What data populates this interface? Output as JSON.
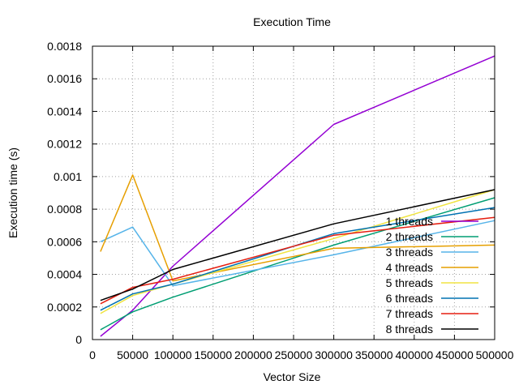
{
  "chart_data": {
    "type": "line",
    "title": "Execution Time",
    "xlabel": "Vector Size",
    "ylabel": "Execution time (s)",
    "xlim": [
      0,
      500000
    ],
    "ylim": [
      0,
      0.0018
    ],
    "x_ticks": [
      0,
      50000,
      100000,
      150000,
      200000,
      250000,
      300000,
      350000,
      400000,
      450000,
      500000
    ],
    "x_tick_labels": [
      "0",
      "50000",
      "100000",
      "150000",
      "200000",
      "250000",
      "300000",
      "350000",
      "400000",
      "450000",
      "500000"
    ],
    "y_ticks": [
      0,
      0.0002,
      0.0004,
      0.0006,
      0.0008,
      0.001,
      0.0012,
      0.0014,
      0.0016,
      0.0018
    ],
    "y_tick_labels": [
      "0",
      "0.0002",
      "0.0004",
      "0.0006",
      "0.0008",
      "0.001",
      "0.0012",
      "0.0014",
      "0.0016",
      "0.0018"
    ],
    "grid": true,
    "legend_position": "bottom-right",
    "x": [
      10000,
      50000,
      100000,
      300000,
      500000
    ],
    "series": [
      {
        "name": "1 threads",
        "color": "#9400d3",
        "values": [
          2e-05,
          0.00018,
          0.00045,
          0.00132,
          0.00174
        ]
      },
      {
        "name": "2 threads",
        "color": "#009e73",
        "values": [
          6e-05,
          0.00017,
          0.00026,
          0.00058,
          0.00087
        ]
      },
      {
        "name": "3 threads",
        "color": "#56b4e9",
        "values": [
          0.0006,
          0.00069,
          0.00033,
          0.00052,
          0.00073
        ]
      },
      {
        "name": "4 threads",
        "color": "#e69f00",
        "values": [
          0.00054,
          0.00101,
          0.00036,
          0.00056,
          0.00058
        ]
      },
      {
        "name": "5 threads",
        "color": "#f0e442",
        "values": [
          0.00016,
          0.00027,
          0.00034,
          0.00062,
          0.00092
        ]
      },
      {
        "name": "6 threads",
        "color": "#0072b2",
        "values": [
          0.00018,
          0.00028,
          0.00034,
          0.00065,
          0.00081
        ]
      },
      {
        "name": "7 threads",
        "color": "#e51e10",
        "values": [
          0.00022,
          0.00032,
          0.00037,
          0.00064,
          0.00075
        ]
      },
      {
        "name": "8 threads",
        "color": "#000000",
        "values": [
          0.00024,
          0.00031,
          0.00043,
          0.00071,
          0.00092
        ]
      }
    ]
  }
}
